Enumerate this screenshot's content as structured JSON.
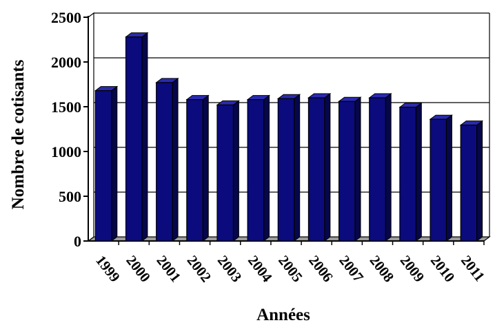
{
  "chart_data": {
    "type": "bar",
    "categories": [
      "1999",
      "2000",
      "2001",
      "2002",
      "2003",
      "2004",
      "2005",
      "2006",
      "2007",
      "2008",
      "2009",
      "2010",
      "2011"
    ],
    "values": [
      1680,
      2280,
      1770,
      1580,
      1520,
      1580,
      1590,
      1600,
      1560,
      1600,
      1495,
      1360,
      1295
    ],
    "title": "",
    "xlabel": "Années",
    "ylabel": "Nombre de cotisants",
    "ylim": [
      0,
      2500
    ],
    "yticks": [
      0,
      500,
      1000,
      1500,
      2000,
      2500
    ],
    "grid": true,
    "style": "3d-bar",
    "colors": {
      "bar_front": "#0b0b7d",
      "bar_top": "#2a2ab0",
      "bar_side": "#06064a",
      "floor": "#9c9c9c",
      "grid": "#000000"
    }
  }
}
